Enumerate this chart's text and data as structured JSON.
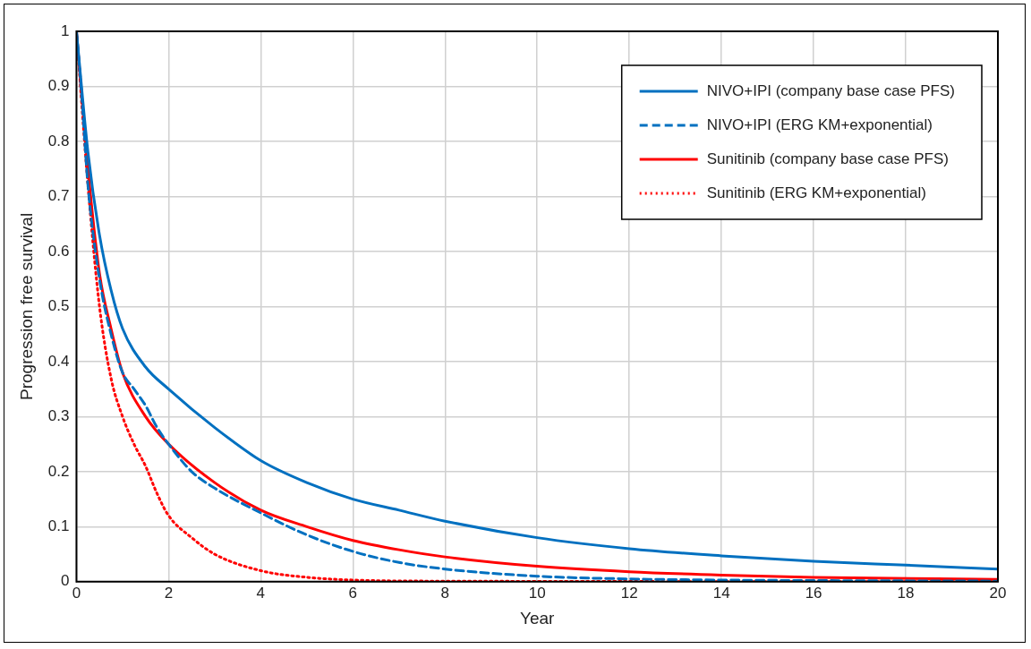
{
  "chart_data": {
    "type": "line",
    "xlabel": "Year",
    "ylabel": "Progression free survival",
    "xlim": [
      0,
      20
    ],
    "xticks": [
      0,
      2,
      4,
      6,
      8,
      10,
      12,
      14,
      16,
      18,
      20
    ],
    "ylim": [
      0,
      1
    ],
    "yticks": [
      0,
      0.1,
      0.2,
      0.3,
      0.4,
      0.5,
      0.6,
      0.7,
      0.8,
      0.9,
      1
    ],
    "grid": true,
    "legend": "top right",
    "marker": "none",
    "series": [
      {
        "name": "NIVO+IPI (company base case PFS)",
        "color": "#0070c0",
        "line_style": "solid",
        "x": [
          0,
          0.25,
          0.5,
          0.75,
          1,
          1.5,
          2,
          3,
          4,
          5,
          6,
          7,
          8,
          10,
          12,
          14,
          16,
          18,
          20
        ],
        "values": [
          1,
          0.78,
          0.63,
          0.53,
          0.46,
          0.39,
          0.35,
          0.28,
          0.22,
          0.18,
          0.15,
          0.13,
          0.11,
          0.08,
          0.06,
          0.047,
          0.037,
          0.03,
          0.023
        ]
      },
      {
        "name": "NIVO+IPI (ERG KM+exponential)",
        "color": "#0070c0",
        "line_style": "dashed",
        "x": [
          0,
          0.1,
          0.25,
          0.5,
          0.75,
          1,
          1.25,
          1.5,
          1.75,
          2,
          2.5,
          3,
          4,
          5,
          6,
          7,
          8,
          10,
          12,
          14,
          20
        ],
        "values": [
          1,
          0.9,
          0.72,
          0.55,
          0.45,
          0.38,
          0.35,
          0.32,
          0.28,
          0.25,
          0.2,
          0.17,
          0.125,
          0.085,
          0.055,
          0.035,
          0.023,
          0.01,
          0.005,
          0.003,
          0.001
        ]
      },
      {
        "name": "Sunitinib (company base case PFS)",
        "color": "#ff0000",
        "line_style": "solid",
        "x": [
          0,
          0.25,
          0.5,
          0.75,
          1,
          1.5,
          2,
          3,
          4,
          5,
          6,
          7,
          8,
          10,
          12,
          14,
          16,
          20
        ],
        "values": [
          1,
          0.75,
          0.56,
          0.46,
          0.38,
          0.3,
          0.25,
          0.18,
          0.13,
          0.1,
          0.075,
          0.058,
          0.045,
          0.028,
          0.018,
          0.012,
          0.008,
          0.004
        ]
      },
      {
        "name": "Sunitinib (ERG KM+exponential)",
        "color": "#ff0000",
        "line_style": "dotted",
        "x": [
          0,
          0.25,
          0.5,
          0.75,
          1,
          1.25,
          1.5,
          1.75,
          2,
          2.5,
          3,
          4,
          5,
          6,
          8,
          20
        ],
        "values": [
          1,
          0.72,
          0.5,
          0.37,
          0.3,
          0.25,
          0.21,
          0.16,
          0.12,
          0.08,
          0.05,
          0.02,
          0.008,
          0.003,
          0.001,
          0
        ]
      }
    ]
  }
}
